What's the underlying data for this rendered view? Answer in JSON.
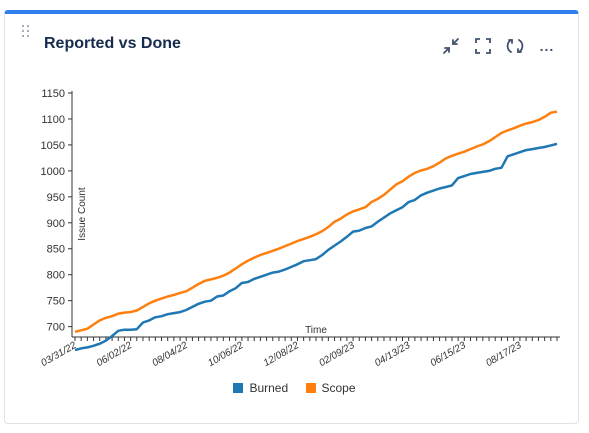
{
  "header": {
    "title": "Reported vs Done",
    "icons": [
      "minimize-icon",
      "fullscreen-icon",
      "refresh-icon",
      "more-icon"
    ],
    "more_label": "..."
  },
  "colors": {
    "accent": "#2f80ed",
    "burned": "#1f77b4",
    "scope": "#ff7f0e"
  },
  "chart_data": {
    "type": "line",
    "xlabel": "Time",
    "ylabel": "Issue Count",
    "ylim": [
      680,
      1150
    ],
    "y_ticks": [
      700,
      750,
      800,
      850,
      900,
      950,
      1000,
      1050,
      1100,
      1150
    ],
    "x": [
      "03/31/22",
      "04/07/22",
      "04/14/22",
      "04/21/22",
      "04/28/22",
      "05/05/22",
      "05/12/22",
      "05/19/22",
      "05/26/22",
      "06/02/22",
      "06/09/22",
      "06/16/22",
      "06/23/22",
      "06/30/22",
      "07/07/22",
      "07/14/22",
      "07/21/22",
      "07/28/22",
      "08/04/22",
      "08/11/22",
      "08/18/22",
      "08/25/22",
      "09/01/22",
      "09/08/22",
      "09/15/22",
      "09/22/22",
      "09/29/22",
      "10/06/22",
      "10/13/22",
      "10/20/22",
      "10/27/22",
      "11/03/22",
      "11/10/22",
      "11/17/22",
      "11/24/22",
      "12/01/22",
      "12/08/22",
      "12/15/22",
      "12/22/22",
      "12/29/22",
      "01/05/23",
      "01/12/23",
      "01/19/23",
      "01/26/23",
      "02/02/23",
      "02/09/23",
      "02/16/23",
      "02/23/23",
      "03/02/23",
      "03/09/23",
      "03/16/23",
      "03/23/23",
      "03/30/23",
      "04/06/23",
      "04/13/23",
      "04/20/23",
      "04/27/23",
      "05/04/23",
      "05/11/23",
      "05/18/23",
      "05/25/23",
      "06/01/23",
      "06/08/23",
      "06/15/23",
      "06/22/23",
      "06/29/23",
      "07/06/23",
      "07/13/23",
      "07/20/23",
      "07/27/23",
      "08/03/23",
      "08/10/23",
      "08/17/23",
      "08/24/23",
      "08/31/23",
      "09/07/23",
      "09/14/23",
      "09/21/23",
      "09/28/23"
    ],
    "x_tick_labels": [
      {
        "index": 0,
        "label": "03/31/22"
      },
      {
        "index": 9,
        "label": "06/02/22"
      },
      {
        "index": 18,
        "label": "08/04/22"
      },
      {
        "index": 27,
        "label": "10/06/22"
      },
      {
        "index": 36,
        "label": "12/08/22"
      },
      {
        "index": 45,
        "label": "02/09/23"
      },
      {
        "index": 54,
        "label": "04/13/23"
      },
      {
        "index": 63,
        "label": "06/15/23"
      },
      {
        "index": 72,
        "label": "08/17/23"
      }
    ],
    "series": [
      {
        "name": "Burned",
        "color": "#1f77b4",
        "values": [
          655,
          658,
          660,
          663,
          667,
          673,
          682,
          692,
          694,
          694,
          695,
          708,
          712,
          718,
          720,
          724,
          726,
          728,
          732,
          738,
          744,
          748,
          750,
          758,
          760,
          768,
          774,
          784,
          786,
          792,
          796,
          800,
          804,
          806,
          810,
          815,
          820,
          826,
          828,
          830,
          838,
          848,
          856,
          864,
          873,
          883,
          885,
          890,
          893,
          902,
          910,
          918,
          924,
          930,
          940,
          944,
          953,
          958,
          962,
          966,
          969,
          972,
          986,
          990,
          994,
          996,
          998,
          1000,
          1004,
          1006,
          1028,
          1032,
          1036,
          1040,
          1042,
          1044,
          1046,
          1049,
          1052
        ]
      },
      {
        "name": "Scope",
        "color": "#ff7f0e",
        "values": [
          690,
          693,
          696,
          704,
          712,
          717,
          720,
          725,
          727,
          728,
          731,
          738,
          745,
          750,
          754,
          758,
          761,
          765,
          768,
          775,
          782,
          788,
          791,
          794,
          798,
          804,
          812,
          820,
          827,
          833,
          838,
          842,
          846,
          850,
          855,
          860,
          865,
          869,
          873,
          878,
          884,
          892,
          902,
          908,
          916,
          922,
          926,
          930,
          940,
          946,
          954,
          964,
          974,
          980,
          989,
          996,
          1001,
          1004,
          1009,
          1016,
          1024,
          1029,
          1033,
          1037,
          1042,
          1047,
          1051,
          1057,
          1065,
          1073,
          1078,
          1082,
          1087,
          1091,
          1094,
          1098,
          1104,
          1112,
          1114
        ]
      }
    ]
  },
  "legend": {
    "items": [
      {
        "label": "Burned"
      },
      {
        "label": "Scope"
      }
    ]
  }
}
